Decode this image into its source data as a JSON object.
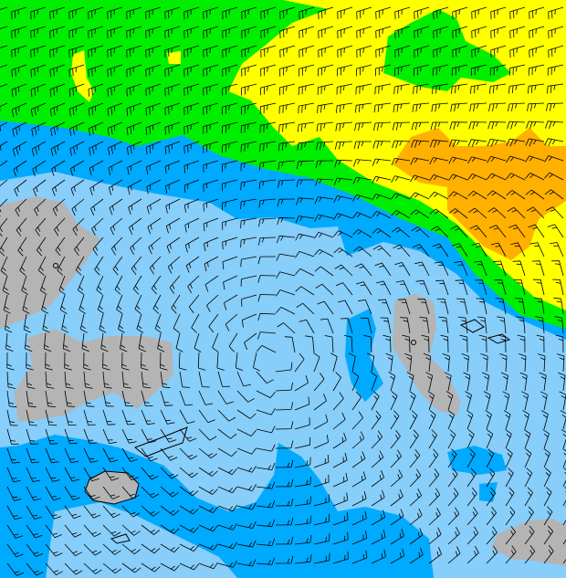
{
  "map": {
    "type": "wind-field",
    "colors": {
      "calm_light_blue": "#87cefa",
      "light_wind_blue": "#00aaff",
      "moderate_green": "#00ee00",
      "strong_yellow": "#ffff00",
      "very_strong_orange": "#ffb000",
      "land_gray": "#b4b4b4",
      "barb": "#000000"
    },
    "icons": [
      "wind-barb",
      "island-outline",
      "station-marker"
    ]
  }
}
